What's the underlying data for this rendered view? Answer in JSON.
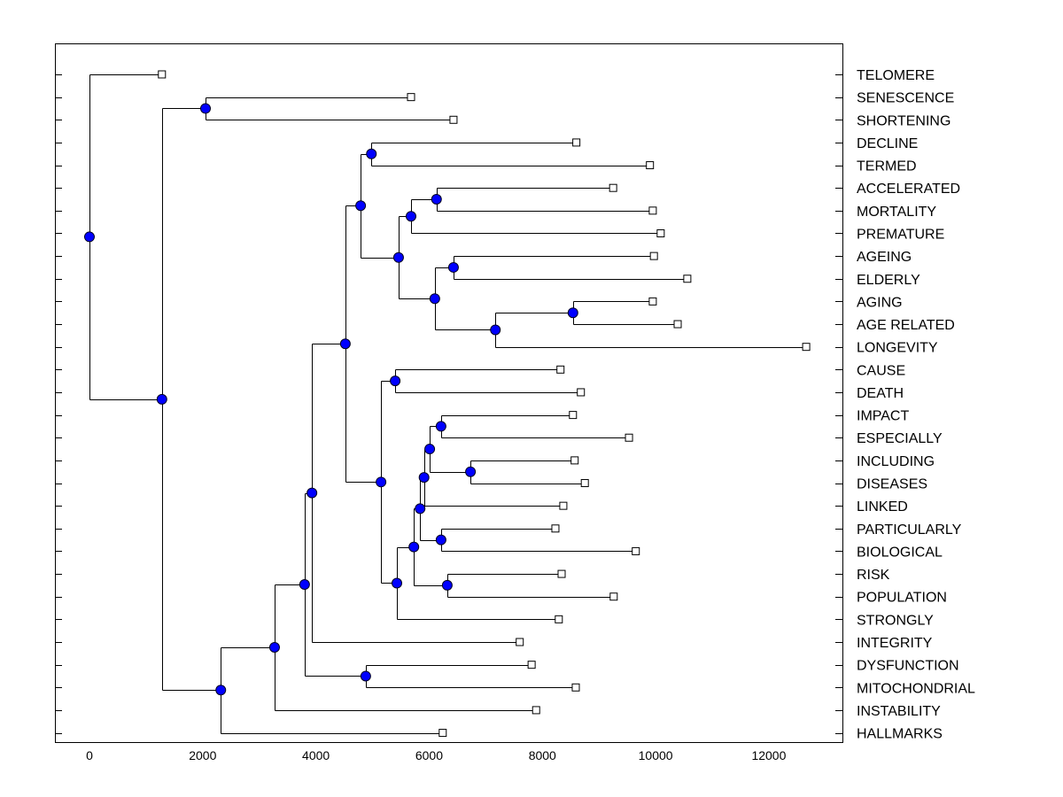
{
  "chart_data": {
    "type": "dendrogram",
    "title": "",
    "xlabel": "",
    "ylabel": "",
    "xlim": [
      -610,
      13300
    ],
    "xticks": [
      0,
      2000,
      4000,
      6000,
      8000,
      10000,
      12000
    ],
    "xtick_labels": [
      "0",
      "2000",
      "4000",
      "6000",
      "8000",
      "10000",
      "12000"
    ],
    "grid": false,
    "node_color": "#0000ff",
    "tree": {
      "h": 0,
      "c": [
        {
          "label": "TELOMERE",
          "v": 1280
        },
        {
          "h": 1280,
          "c": [
            {
              "h": 2050,
              "c": [
                {
                  "label": "SENESCENCE",
                  "v": 5680
                },
                {
                  "label": "SHORTENING",
                  "v": 6430
                }
              ]
            },
            {
              "h": 2320,
              "c": [
                {
                  "h": 3270,
                  "c": [
                    {
                      "h": 3800,
                      "c": [
                        {
                          "h": 3930,
                          "c": [
                            {
                              "h": 4520,
                              "c": [
                                {
                                  "h": 4790,
                                  "c": [
                                    {
                                      "h": 4980,
                                      "c": [
                                        {
                                          "label": "DECLINE",
                                          "v": 8600
                                        },
                                        {
                                          "label": "TERMED",
                                          "v": 9900
                                        }
                                      ]
                                    },
                                    {
                                      "h": 5460,
                                      "c": [
                                        {
                                          "h": 5680,
                                          "c": [
                                            {
                                              "h": 6130,
                                              "c": [
                                                {
                                                  "label": "ACCELERATED",
                                                  "v": 9250
                                                },
                                                {
                                                  "label": "MORTALITY",
                                                  "v": 9950
                                                }
                                              ]
                                            },
                                            {
                                              "label": "PREMATURE",
                                              "v": 10090
                                            }
                                          ]
                                        },
                                        {
                                          "h": 6100,
                                          "c": [
                                            {
                                              "h": 6430,
                                              "c": [
                                                {
                                                  "label": "AGEING",
                                                  "v": 9970
                                                },
                                                {
                                                  "label": "ELDERLY",
                                                  "v": 10560
                                                }
                                              ]
                                            },
                                            {
                                              "h": 7170,
                                              "c": [
                                                {
                                                  "h": 8540,
                                                  "c": [
                                                    {
                                                      "label": "AGING",
                                                      "v": 9950
                                                    },
                                                    {
                                                      "label": "AGE RELATED",
                                                      "v": 10390
                                                    }
                                                  ]
                                                },
                                                {
                                                  "label": "LONGEVITY",
                                                  "v": 12660
                                                }
                                              ]
                                            }
                                          ]
                                        }
                                      ]
                                    }
                                  ]
                                },
                                {
                                  "h": 5150,
                                  "c": [
                                    {
                                      "h": 5400,
                                      "c": [
                                        {
                                          "label": "CAUSE",
                                          "v": 8320
                                        },
                                        {
                                          "label": "DEATH",
                                          "v": 8680
                                        }
                                      ]
                                    },
                                    {
                                      "h": 5430,
                                      "c": [
                                        {
                                          "h": 5730,
                                          "c": [
                                            {
                                              "h": 5840,
                                              "c": [
                                                {
                                                  "h": 5910,
                                                  "c": [
                                                    {
                                                      "h": 6010,
                                                      "c": [
                                                        {
                                                          "h": 6210,
                                                          "c": [
                                                            {
                                                              "label": "IMPACT",
                                                              "v": 8540
                                                            },
                                                            {
                                                              "label": "ESPECIALLY",
                                                              "v": 9530
                                                            }
                                                          ]
                                                        },
                                                        {
                                                          "h": 6730,
                                                          "c": [
                                                            {
                                                              "label": "INCLUDING",
                                                              "v": 8570
                                                            },
                                                            {
                                                              "label": "DISEASES",
                                                              "v": 8750
                                                            }
                                                          ]
                                                        }
                                                      ]
                                                    },
                                                    {
                                                      "label": "LINKED",
                                                      "v": 8370
                                                    }
                                                  ]
                                                },
                                                {
                                                  "h": 6210,
                                                  "c": [
                                                    {
                                                      "label": "PARTICULARLY",
                                                      "v": 8230
                                                    },
                                                    {
                                                      "label": "BIOLOGICAL",
                                                      "v": 9650
                                                    }
                                                  ]
                                                }
                                              ]
                                            },
                                            {
                                              "h": 6320,
                                              "c": [
                                                {
                                                  "label": "RISK",
                                                  "v": 8340
                                                },
                                                {
                                                  "label": "POPULATION",
                                                  "v": 9260
                                                }
                                              ]
                                            }
                                          ]
                                        },
                                        {
                                          "label": "STRONGLY",
                                          "v": 8290
                                        }
                                      ]
                                    }
                                  ]
                                }
                              ]
                            },
                            {
                              "label": "INTEGRITY",
                              "v": 7600
                            }
                          ]
                        },
                        {
                          "h": 4880,
                          "c": [
                            {
                              "label": "DYSFUNCTION",
                              "v": 7810
                            },
                            {
                              "label": "MITOCHONDRIAL",
                              "v": 8590
                            }
                          ]
                        }
                      ]
                    },
                    {
                      "label": "INSTABILITY",
                      "v": 7890
                    }
                  ]
                },
                {
                  "label": "HALLMARKS",
                  "v": 6240
                }
              ]
            }
          ]
        }
      ]
    }
  }
}
